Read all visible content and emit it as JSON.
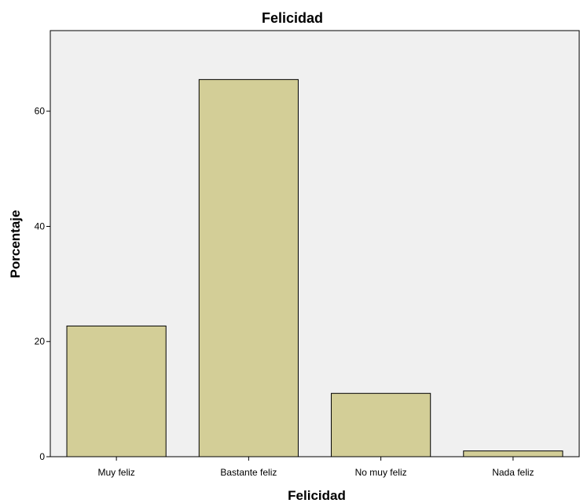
{
  "chart_data": {
    "type": "bar",
    "title": "Felicidad",
    "xlabel": "Felicidad",
    "ylabel": "Porcentaje",
    "categories": [
      "Muy feliz",
      "Bastante feliz",
      "No muy feliz",
      "Nada feliz"
    ],
    "values": [
      22.7,
      65.5,
      11.0,
      1.0
    ],
    "ylim": [
      0,
      74
    ],
    "yticks": [
      0,
      20,
      40,
      60
    ],
    "grid": false,
    "bar_color": "#d3ce97",
    "plot_background": "#f0f0f0"
  }
}
